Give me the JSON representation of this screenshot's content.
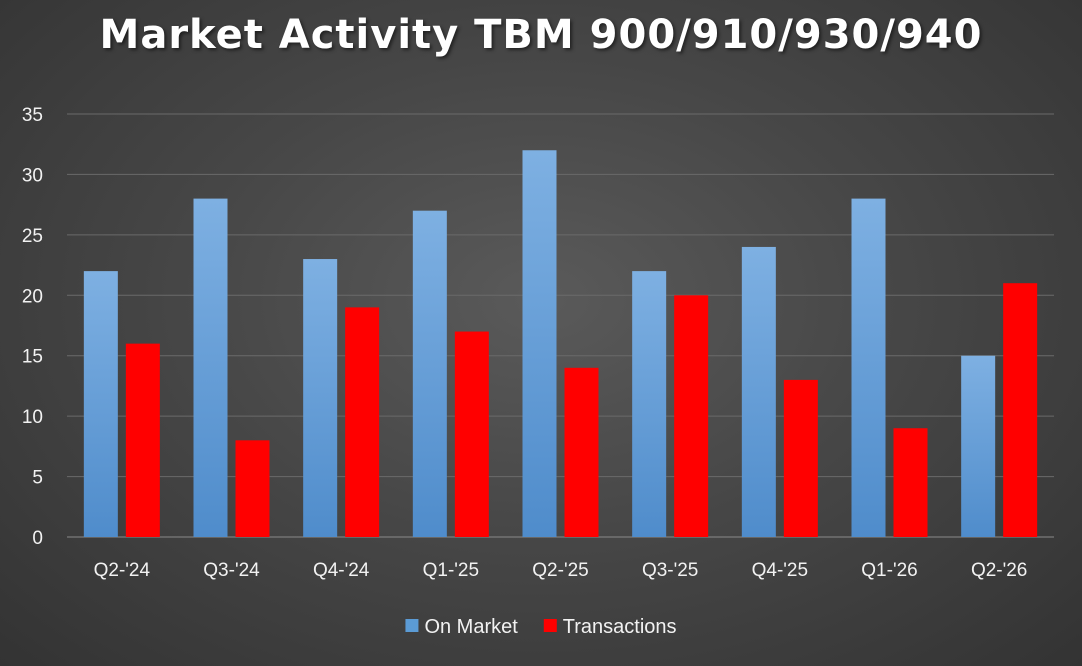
{
  "chart_data": {
    "type": "bar",
    "title": "Market Activity TBM 900/910/930/940",
    "categories": [
      "Q2-'24",
      "Q3-'24",
      "Q4-'24",
      "Q1-'25",
      "Q2-'25",
      "Q3-'25",
      "Q4-'25",
      "Q1-'26",
      "Q2-'26"
    ],
    "series": [
      {
        "name": "On Market",
        "color": "#5b9bd5",
        "values": [
          22,
          28,
          23,
          27,
          32,
          22,
          24,
          28,
          15
        ]
      },
      {
        "name": "Transactions",
        "color": "#ff0000",
        "values": [
          16,
          8,
          19,
          17,
          14,
          20,
          13,
          9,
          21
        ]
      }
    ],
    "ylim": [
      0,
      35
    ],
    "yticks": [
      0,
      5,
      10,
      15,
      20,
      25,
      30,
      35
    ],
    "grid": true,
    "legend_position": "bottom"
  }
}
